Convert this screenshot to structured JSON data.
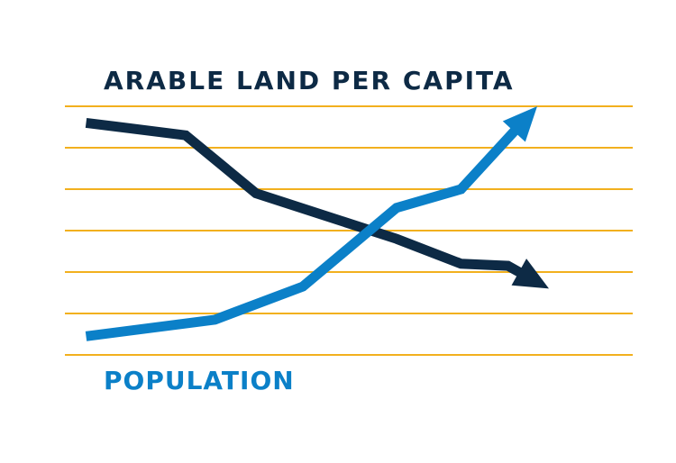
{
  "colors": {
    "grid": "#f2b01e",
    "arable": "#0d2a45",
    "population": "#0b80c8",
    "background": "#ffffff"
  },
  "chart_data": {
    "type": "line",
    "title": "",
    "xlabel": "",
    "ylabel": "",
    "grid": true,
    "gridlines": 7,
    "ylim": [
      0,
      6
    ],
    "xlim": [
      0,
      10
    ],
    "series": [
      {
        "name": "ARABLE LAND PER CAPITA",
        "color_key": "arable",
        "end_marker": "arrow",
        "points": [
          {
            "x": 0.7,
            "y": 5.6
          },
          {
            "x": 2.4,
            "y": 5.3
          },
          {
            "x": 3.6,
            "y": 3.9
          },
          {
            "x": 6.0,
            "y": 2.8
          },
          {
            "x": 7.1,
            "y": 2.2
          },
          {
            "x": 7.9,
            "y": 2.15
          },
          {
            "x": 8.6,
            "y": 1.6
          }
        ]
      },
      {
        "name": "POPULATION",
        "color_key": "population",
        "end_marker": "arrow",
        "points": [
          {
            "x": 0.7,
            "y": 0.45
          },
          {
            "x": 2.9,
            "y": 0.85
          },
          {
            "x": 4.4,
            "y": 1.65
          },
          {
            "x": 6.0,
            "y": 3.55
          },
          {
            "x": 7.1,
            "y": 4.0
          },
          {
            "x": 8.4,
            "y": 6.0
          }
        ]
      }
    ]
  }
}
